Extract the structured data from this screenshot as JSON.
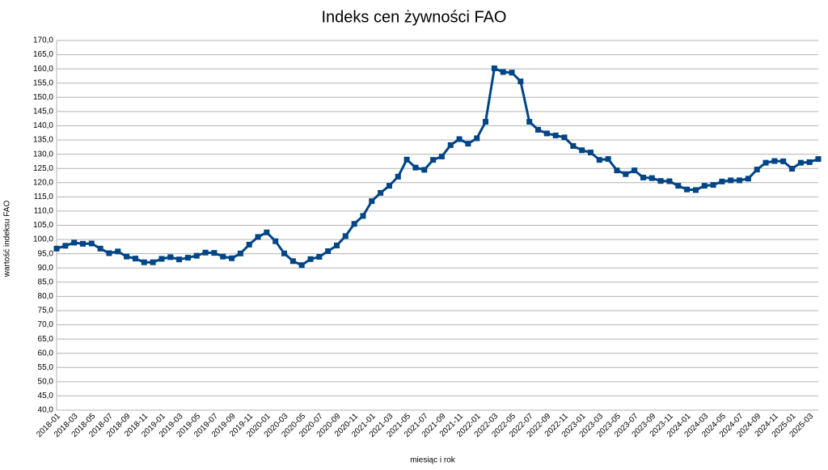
{
  "chart_data": {
    "type": "line",
    "title": "Indeks cen żywności FAO",
    "x_label": "miesiąc i rok",
    "y_label": "wartość indeksu FAO",
    "categories": [
      "2018-01",
      null,
      "2018-03",
      null,
      "2018-05",
      null,
      "2018-07",
      null,
      "2018-09",
      null,
      "2018-11",
      null,
      "2019-01",
      null,
      "2019-03",
      null,
      "2019-05",
      null,
      "2019-07",
      null,
      "2019-09",
      null,
      "2019-11",
      null,
      "2020-01",
      null,
      "2020-03",
      null,
      "2020-05",
      null,
      "2020-07",
      null,
      "2020-09",
      null,
      "2020-11",
      null,
      "2021-01",
      null,
      "2021-03",
      null,
      "2021-05",
      null,
      "2021-07",
      null,
      "2021-09",
      null,
      "2021-11",
      null,
      "2022-01",
      null,
      "2022-03",
      null,
      "2022-05",
      null,
      "2022-07",
      null,
      "2022-09",
      null,
      "2022-11",
      null,
      "2023-01",
      null,
      "2023-03",
      null,
      "2023-05",
      null,
      "2023-07",
      null,
      "2023-09",
      null,
      "2023-11",
      null,
      "2024-01",
      null,
      "2024-03",
      null,
      "2024-05",
      null,
      "2024-07",
      null,
      "2024-09",
      null,
      "2024-11",
      null,
      "2025-01",
      null,
      "2025-03",
      null
    ],
    "series": [
      {
        "color": "#004586",
        "values": [
          96.8,
          97.8,
          98.9,
          98.5,
          98.6,
          96.8,
          95.2,
          95.8,
          94.0,
          93.3,
          92.0,
          92.0,
          93.2,
          93.8,
          93.0,
          93.6,
          94.3,
          95.4,
          95.3,
          94.0,
          93.4,
          95.1,
          98.2,
          100.9,
          102.5,
          99.4,
          95.1,
          92.4,
          91.0,
          93.1,
          93.9,
          95.9,
          97.9,
          101.2,
          105.5,
          108.3,
          113.5,
          116.4,
          118.9,
          122.1,
          128.1,
          125.3,
          124.5,
          128.0,
          129.2,
          133.2,
          135.3,
          133.7,
          135.6,
          141.4,
          160.2,
          158.9,
          158.7,
          155.6,
          141.4,
          138.6,
          137.3,
          136.6,
          135.9,
          132.9,
          131.4,
          130.6,
          128.0,
          128.3,
          124.3,
          123.0,
          124.3,
          121.8,
          121.6,
          120.6,
          120.5,
          118.9,
          117.6,
          117.4,
          118.9,
          119.2,
          120.4,
          120.8,
          120.8,
          121.4,
          124.6,
          127.0,
          127.6,
          127.5,
          124.9,
          127.0,
          127.2,
          128.3
        ]
      }
    ],
    "ylim": [
      40,
      170
    ],
    "yticks": [
      {
        "value": 40,
        "label": "40,0"
      },
      {
        "value": 45,
        "label": "45,0"
      },
      {
        "value": 50,
        "label": "50,0"
      },
      {
        "value": 55,
        "label": "55,0"
      },
      {
        "value": 60,
        "label": "60,0"
      },
      {
        "value": 65,
        "label": "65,0"
      },
      {
        "value": 70,
        "label": "70,0"
      },
      {
        "value": 75,
        "label": "75,0"
      },
      {
        "value": 80,
        "label": "80,0"
      },
      {
        "value": 85,
        "label": "85,0"
      },
      {
        "value": 90,
        "label": "90,0"
      },
      {
        "value": 95,
        "label": "95,0"
      },
      {
        "value": 100,
        "label": "100,0"
      },
      {
        "value": 105,
        "label": "105,0"
      },
      {
        "value": 110,
        "label": "110,0"
      },
      {
        "value": 115,
        "label": "115,0"
      },
      {
        "value": 120,
        "label": "120,0"
      },
      {
        "value": 125,
        "label": "125,0"
      },
      {
        "value": 130,
        "label": "130,0"
      },
      {
        "value": 135,
        "label": "135,0"
      },
      {
        "value": 140,
        "label": "140,0"
      },
      {
        "value": 145,
        "label": "145,0"
      },
      {
        "value": 150,
        "label": "150,0"
      },
      {
        "value": 155,
        "label": "155,0"
      },
      {
        "value": 160,
        "label": "160,0"
      },
      {
        "value": 165,
        "label": "165,0"
      },
      {
        "value": 170,
        "label": "170,0"
      }
    ],
    "grid": true
  }
}
